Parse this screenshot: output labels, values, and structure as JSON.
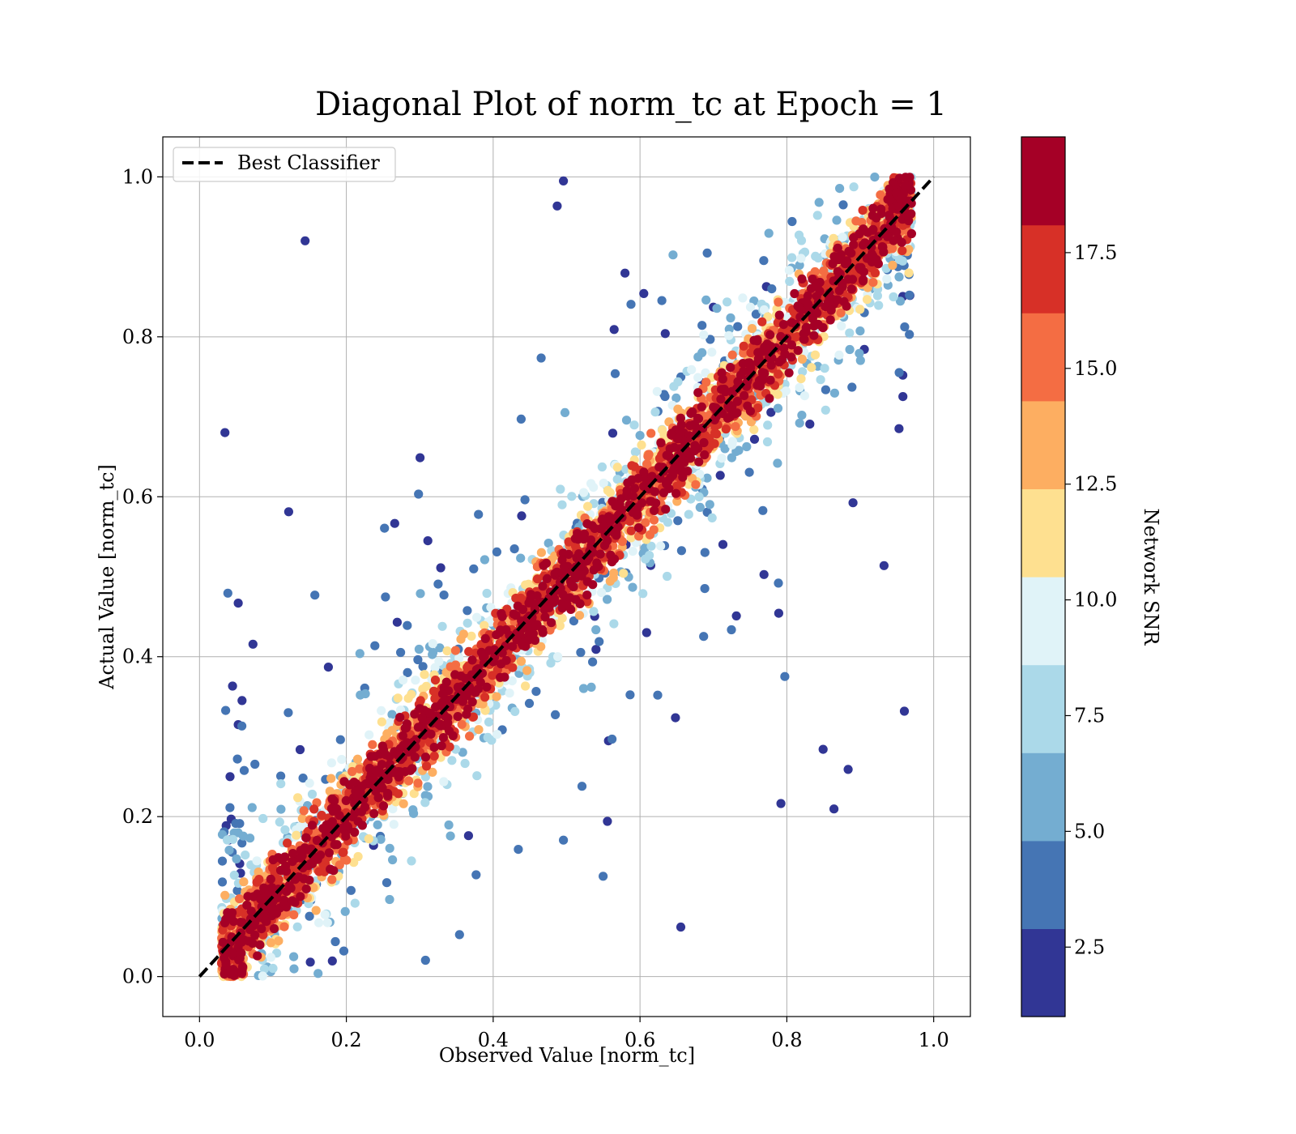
{
  "chart_data": {
    "type": "scatter",
    "title": "Diagonal Plot of norm_tc at Epoch = 1",
    "xlabel": "Observed Value [norm_tc]",
    "ylabel": "Actual Value [norm_tc]",
    "xlim": [
      -0.05,
      1.05
    ],
    "ylim": [
      -0.05,
      1.05
    ],
    "xticks": [
      0.0,
      0.2,
      0.4,
      0.6,
      0.8,
      1.0
    ],
    "yticks": [
      0.0,
      0.2,
      0.4,
      0.6,
      0.8,
      1.0
    ],
    "xtick_labels": [
      "0.0",
      "0.2",
      "0.4",
      "0.6",
      "0.8",
      "1.0"
    ],
    "ytick_labels": [
      "0.0",
      "0.2",
      "0.4",
      "0.6",
      "0.8",
      "1.0"
    ],
    "grid": true,
    "legend": {
      "placement": "top-left",
      "entries": [
        {
          "label": "Best Classifier",
          "style": "dashed",
          "color": "#000000"
        }
      ]
    },
    "reference_line": {
      "name": "Best Classifier",
      "x": [
        0.0,
        1.0
      ],
      "y": [
        0.0,
        1.0
      ]
    },
    "colorbar": {
      "label": "Network SNR",
      "range": [
        1.0,
        20.0
      ],
      "ticks": [
        2.5,
        5.0,
        7.5,
        10.0,
        12.5,
        15.0,
        17.5
      ],
      "tick_labels": [
        "2.5",
        "5.0",
        "7.5",
        "10.0",
        "12.5",
        "15.0",
        "17.5"
      ],
      "colors": [
        "#313695",
        "#4575b4",
        "#74add1",
        "#abd9e9",
        "#e0f3f8",
        "#fee090",
        "#fdae61",
        "#f46d43",
        "#d73027",
        "#a50026"
      ]
    },
    "x_data_range": [
      0.03,
      0.97
    ],
    "y_data_range": [
      0.0,
      1.0
    ]
  }
}
